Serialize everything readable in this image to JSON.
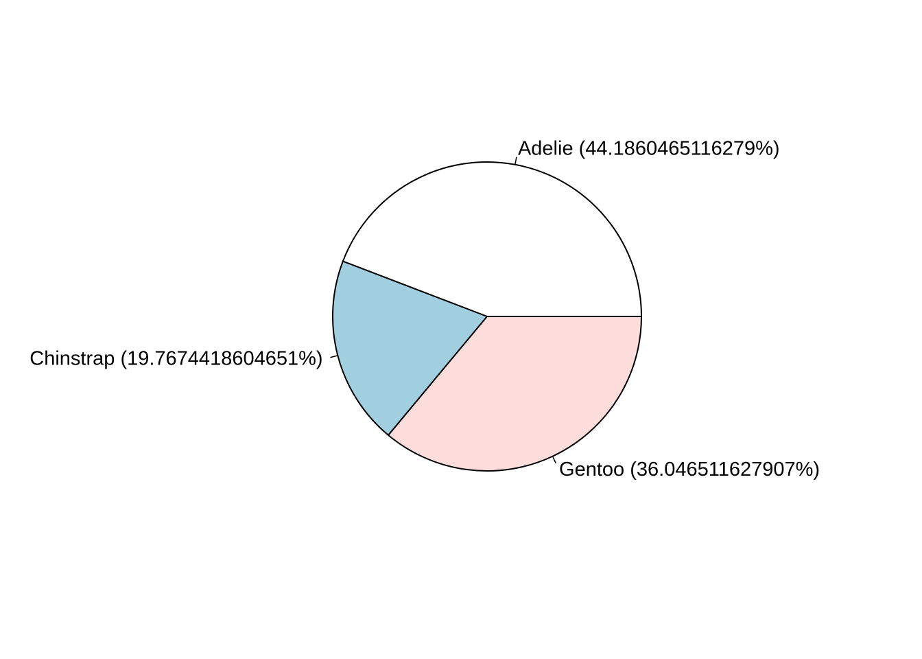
{
  "chart_data": {
    "type": "pie",
    "title": "",
    "slices": [
      {
        "category": "Adelie",
        "value": 44.1860465116279,
        "label": "Adelie (44.1860465116279%)",
        "color": "#ffffff"
      },
      {
        "category": "Chinstrap",
        "value": 19.7674418604651,
        "label": "Chinstrap (19.7674418604651%)",
        "color": "#a2cfe0"
      },
      {
        "category": "Gentoo",
        "value": 36.046511627907,
        "label": "Gentoo (36.046511627907%)",
        "color": "#fddddb"
      }
    ],
    "direction": "counterclockwise",
    "start": "3 o'clock",
    "legend": "none"
  }
}
